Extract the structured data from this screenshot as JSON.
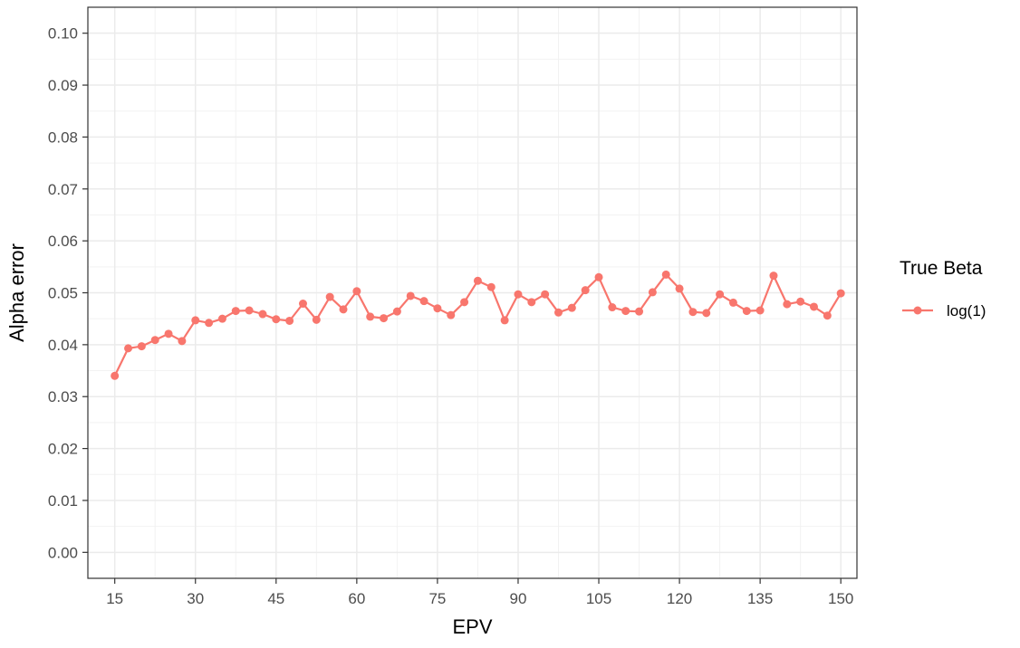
{
  "chart_data": {
    "type": "line",
    "xlabel": "EPV",
    "ylabel": "Alpha error",
    "xlim": [
      10,
      153
    ],
    "ylim": [
      -0.005,
      0.105
    ],
    "x_ticks": [
      15,
      30,
      45,
      60,
      75,
      90,
      105,
      120,
      135,
      150
    ],
    "y_ticks": [
      0.0,
      0.01,
      0.02,
      0.03,
      0.04,
      0.05,
      0.06,
      0.07,
      0.08,
      0.09,
      0.1
    ],
    "x_tick_labels": [
      "15",
      "30",
      "45",
      "60",
      "75",
      "90",
      "105",
      "120",
      "135",
      "150"
    ],
    "y_tick_labels": [
      "0.00",
      "0.01",
      "0.02",
      "0.03",
      "0.04",
      "0.05",
      "0.06",
      "0.07",
      "0.08",
      "0.09",
      "0.10"
    ],
    "grid": true,
    "legend": {
      "title": "True Beta",
      "position": "right"
    },
    "series": [
      {
        "name": "log(1)",
        "color": "#F8766D",
        "x": [
          15,
          17.5,
          20,
          22.5,
          25,
          27.5,
          30,
          32.5,
          35,
          37.5,
          40,
          42.5,
          45,
          47.5,
          50,
          52.5,
          55,
          57.5,
          60,
          62.5,
          65,
          67.5,
          70,
          72.5,
          75,
          77.5,
          80,
          82.5,
          85,
          87.5,
          90,
          92.5,
          95,
          97.5,
          100,
          102.5,
          105,
          107.5,
          110,
          112.5,
          115,
          117.5,
          120,
          122.5,
          125,
          127.5,
          130,
          132.5,
          135,
          137.5,
          140,
          142.5,
          145,
          147.5,
          150
        ],
        "y": [
          0.034,
          0.0393,
          0.0397,
          0.0409,
          0.0421,
          0.0407,
          0.0447,
          0.0442,
          0.045,
          0.0465,
          0.0466,
          0.0459,
          0.0449,
          0.0446,
          0.0479,
          0.0448,
          0.0492,
          0.0468,
          0.0503,
          0.0454,
          0.0451,
          0.0464,
          0.0494,
          0.0484,
          0.047,
          0.0457,
          0.0482,
          0.0523,
          0.0511,
          0.0447,
          0.0497,
          0.0482,
          0.0497,
          0.0462,
          0.0471,
          0.0505,
          0.053,
          0.0472,
          0.0465,
          0.0464,
          0.0501,
          0.0535,
          0.0508,
          0.0463,
          0.0461,
          0.0497,
          0.0481,
          0.0465,
          0.0466,
          0.0533,
          0.0478,
          0.0483,
          0.0473,
          0.0456,
          0.0499
        ]
      }
    ]
  }
}
